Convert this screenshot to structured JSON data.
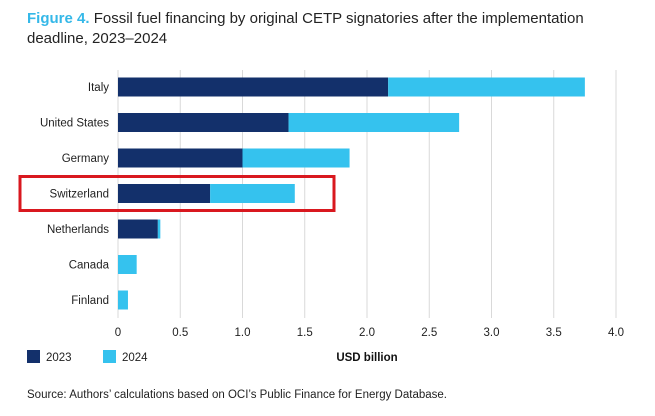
{
  "figure_label": "Figure 4.",
  "title_text": "Fossil fuel financing by original CETP signatories after the implementation deadline, 2023–2024",
  "source": "Source: Authors’ calculations based on OCI’s Public Finance for Energy Database.",
  "colors": {
    "series_2023": "#13306b",
    "series_2024": "#35c2ee",
    "highlight": "#d9181f",
    "grid": "#d9d9d9"
  },
  "chart_data": {
    "type": "bar",
    "orientation": "horizontal",
    "stacked": true,
    "title": "Fossil fuel financing by original CETP signatories after the implementation deadline, 2023–2024",
    "xlabel": "USD billion",
    "ylabel": "",
    "xlim": [
      0,
      4.0
    ],
    "xticks": [
      "0",
      "0.5",
      "1.0",
      "1.5",
      "2.0",
      "2.5",
      "3.0",
      "3.5",
      "4.0"
    ],
    "grid": true,
    "legend_position": "bottom-left",
    "categories": [
      "Italy",
      "United States",
      "Germany",
      "Switzerland",
      "Netherlands",
      "Canada",
      "Finland"
    ],
    "series": [
      {
        "name": "2023",
        "values": [
          2.17,
          1.37,
          1.0,
          0.74,
          0.32,
          0.0,
          0.0
        ]
      },
      {
        "name": "2024",
        "values": [
          1.58,
          1.37,
          0.86,
          0.68,
          0.02,
          0.15,
          0.08
        ]
      }
    ],
    "annotations": [
      {
        "type": "highlight-box",
        "category": "Switzerland"
      }
    ]
  }
}
